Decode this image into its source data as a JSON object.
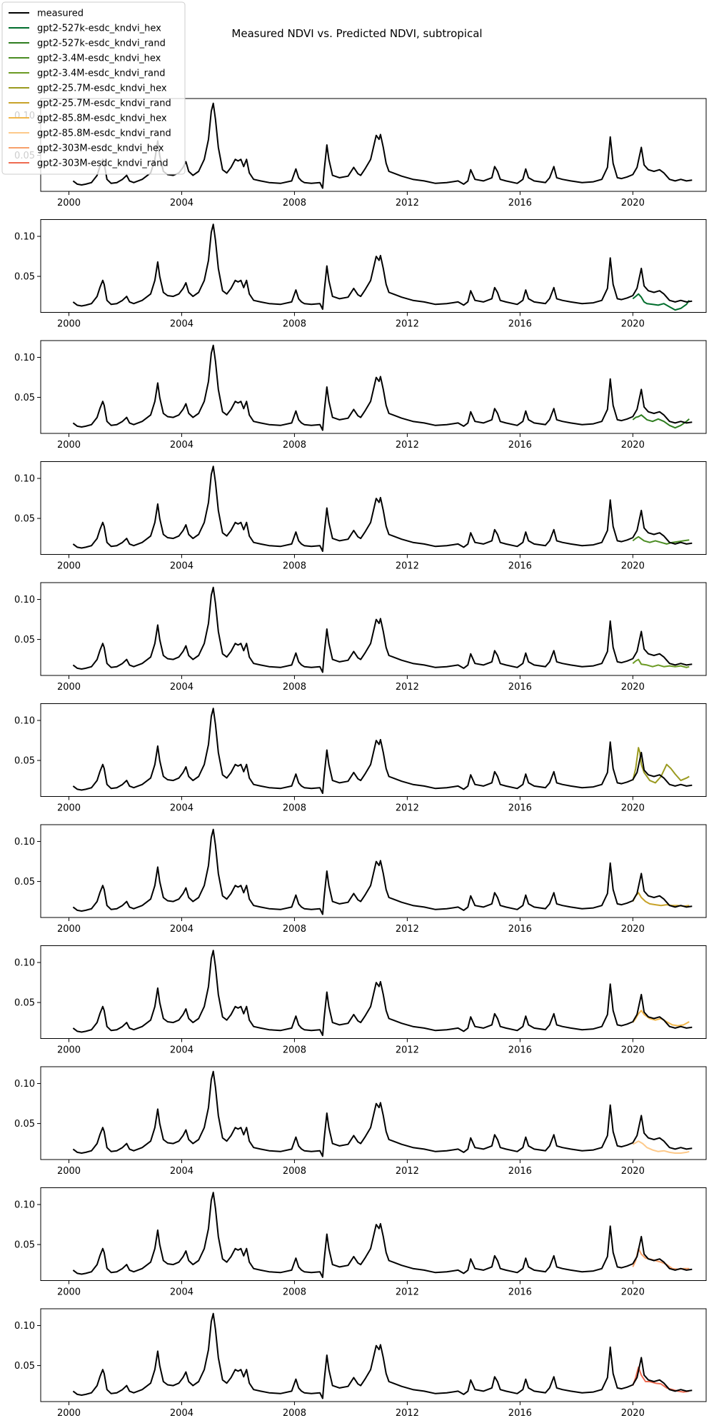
{
  "figure": {
    "title": "Measured NDVI vs. Predicted NDVI, subtropical"
  },
  "legend": {
    "placement": "top-left",
    "entries": [
      {
        "name": "measured",
        "color": "#000000"
      },
      {
        "name": "gpt2-527k-esdc_kndvi_hex",
        "color": "#006d2c"
      },
      {
        "name": "gpt2-527k-esdc_kndvi_rand",
        "color": "#2e7d1f"
      },
      {
        "name": "gpt2-3.4M-esdc_kndvi_hex",
        "color": "#4a8c22"
      },
      {
        "name": "gpt2-3.4M-esdc_kndvi_rand",
        "color": "#6b9a23"
      },
      {
        "name": "gpt2-25.7M-esdc_kndvi_hex",
        "color": "#9a9a1f"
      },
      {
        "name": "gpt2-25.7M-esdc_kndvi_rand",
        "color": "#c8a32a"
      },
      {
        "name": "gpt2-85.8M-esdc_kndvi_hex",
        "color": "#f0b64a"
      },
      {
        "name": "gpt2-85.8M-esdc_kndvi_rand",
        "color": "#fdc98a"
      },
      {
        "name": "gpt2-303M-esdc_kndvi_hex",
        "color": "#f7a06a"
      },
      {
        "name": "gpt2-303M-esdc_kndvi_rand",
        "color": "#ee6a50"
      }
    ]
  },
  "chart_data": {
    "type": "line",
    "xlabel": "",
    "ylabel": "",
    "xlim": [
      1999.0,
      2022.6
    ],
    "ylim": [
      0.005,
      0.121
    ],
    "grid": false,
    "x_ticks": [
      2000,
      2004,
      2008,
      2012,
      2016,
      2020
    ],
    "x_tick_labels": [
      "2000",
      "2004",
      "2008",
      "2012",
      "2016",
      "2020"
    ],
    "y_ticks": [
      0.05,
      0.1
    ],
    "y_tick_labels": [
      "0.05",
      "0.10"
    ],
    "measured": {
      "name": "measured",
      "color": "#000000",
      "x": [
        2000.15,
        2000.3,
        2000.45,
        2000.6,
        2000.8,
        2001.0,
        2001.1,
        2001.2,
        2001.25,
        2001.35,
        2001.5,
        2001.7,
        2001.9,
        2002.05,
        2002.15,
        2002.3,
        2002.6,
        2002.9,
        2003.05,
        2003.15,
        2003.22,
        2003.35,
        2003.5,
        2003.7,
        2003.9,
        2004.05,
        2004.15,
        2004.25,
        2004.4,
        2004.6,
        2004.8,
        2004.95,
        2005.05,
        2005.12,
        2005.2,
        2005.3,
        2005.45,
        2005.6,
        2005.75,
        2005.9,
        2006.0,
        2006.1,
        2006.2,
        2006.3,
        2006.4,
        2006.55,
        2006.8,
        2007.1,
        2007.5,
        2007.9,
        2008.05,
        2008.15,
        2008.25,
        2008.35,
        2008.6,
        2008.9,
        2009.0,
        2009.05,
        2009.15,
        2009.22,
        2009.35,
        2009.6,
        2009.9,
        2010.1,
        2010.25,
        2010.35,
        2010.5,
        2010.7,
        2010.9,
        2011.0,
        2011.05,
        2011.15,
        2011.25,
        2011.35,
        2011.5,
        2011.8,
        2012.2,
        2012.6,
        2013.0,
        2013.4,
        2013.8,
        2014.0,
        2014.15,
        2014.25,
        2014.4,
        2014.7,
        2015.0,
        2015.1,
        2015.2,
        2015.3,
        2015.5,
        2015.9,
        2016.1,
        2016.2,
        2016.3,
        2016.5,
        2016.9,
        2017.05,
        2017.2,
        2017.3,
        2017.5,
        2017.8,
        2018.2,
        2018.6,
        2018.9,
        2019.1,
        2019.2,
        2019.3,
        2019.45,
        2019.6,
        2019.8,
        2020.0,
        2020.15,
        2020.3,
        2020.4,
        2020.55,
        2020.75,
        2020.95,
        2021.1,
        2021.3,
        2021.5,
        2021.7,
        2021.9,
        2022.1
      ],
      "y": [
        0.018,
        0.014,
        0.013,
        0.014,
        0.016,
        0.025,
        0.036,
        0.045,
        0.04,
        0.02,
        0.015,
        0.016,
        0.02,
        0.025,
        0.018,
        0.016,
        0.02,
        0.028,
        0.045,
        0.068,
        0.05,
        0.03,
        0.026,
        0.025,
        0.028,
        0.035,
        0.042,
        0.03,
        0.025,
        0.03,
        0.045,
        0.07,
        0.105,
        0.115,
        0.095,
        0.06,
        0.032,
        0.028,
        0.035,
        0.045,
        0.043,
        0.045,
        0.036,
        0.045,
        0.028,
        0.02,
        0.018,
        0.016,
        0.015,
        0.018,
        0.033,
        0.022,
        0.018,
        0.016,
        0.015,
        0.016,
        0.009,
        0.03,
        0.063,
        0.045,
        0.025,
        0.022,
        0.024,
        0.035,
        0.027,
        0.025,
        0.033,
        0.045,
        0.075,
        0.07,
        0.076,
        0.06,
        0.04,
        0.03,
        0.028,
        0.024,
        0.02,
        0.018,
        0.015,
        0.016,
        0.018,
        0.014,
        0.018,
        0.032,
        0.02,
        0.018,
        0.022,
        0.036,
        0.03,
        0.02,
        0.018,
        0.015,
        0.02,
        0.033,
        0.022,
        0.018,
        0.016,
        0.022,
        0.036,
        0.022,
        0.02,
        0.018,
        0.016,
        0.017,
        0.02,
        0.035,
        0.073,
        0.04,
        0.022,
        0.021,
        0.023,
        0.026,
        0.035,
        0.06,
        0.038,
        0.032,
        0.03,
        0.032,
        0.028,
        0.02,
        0.018,
        0.02,
        0.018,
        0.019
      ]
    },
    "predictions": [
      {
        "name": "gpt2-527k-esdc_kndvi_hex",
        "color": "#006d2c",
        "x": [
          2020.0,
          2020.1,
          2020.2,
          2020.3,
          2020.4,
          2020.5,
          2020.7,
          2020.9,
          2021.1,
          2021.3,
          2021.5,
          2021.7,
          2021.9,
          2022.0
        ],
        "y": [
          0.022,
          0.025,
          0.028,
          0.024,
          0.018,
          0.016,
          0.015,
          0.014,
          0.016,
          0.012,
          0.008,
          0.01,
          0.015,
          0.02
        ]
      },
      {
        "name": "gpt2-527k-esdc_kndvi_rand",
        "color": "#2e7d1f",
        "x": [
          2020.0,
          2020.1,
          2020.2,
          2020.3,
          2020.5,
          2020.7,
          2020.9,
          2021.1,
          2021.3,
          2021.5,
          2021.7,
          2021.9,
          2022.0
        ],
        "y": [
          0.022,
          0.025,
          0.026,
          0.028,
          0.022,
          0.02,
          0.023,
          0.02,
          0.015,
          0.012,
          0.015,
          0.02,
          0.023
        ]
      },
      {
        "name": "gpt2-3.4M-esdc_kndvi_hex",
        "color": "#4a8c22",
        "x": [
          2020.0,
          2020.1,
          2020.2,
          2020.4,
          2020.6,
          2020.8,
          2021.0,
          2021.2,
          2021.4,
          2021.6,
          2021.8,
          2022.0
        ],
        "y": [
          0.022,
          0.025,
          0.027,
          0.022,
          0.02,
          0.022,
          0.02,
          0.018,
          0.02,
          0.021,
          0.022,
          0.023
        ]
      },
      {
        "name": "gpt2-3.4M-esdc_kndvi_rand",
        "color": "#6b9a23",
        "x": [
          2020.0,
          2020.1,
          2020.2,
          2020.3,
          2020.5,
          2020.7,
          2020.9,
          2021.1,
          2021.3,
          2021.5,
          2021.7,
          2021.9,
          2022.0
        ],
        "y": [
          0.02,
          0.023,
          0.025,
          0.019,
          0.018,
          0.016,
          0.018,
          0.016,
          0.017,
          0.016,
          0.017,
          0.015,
          0.016
        ]
      },
      {
        "name": "gpt2-25.7M-esdc_kndvi_hex",
        "color": "#9a9a1f",
        "x": [
          2020.0,
          2020.1,
          2020.2,
          2020.25,
          2020.3,
          2020.4,
          2020.5,
          2020.6,
          2020.8,
          2021.0,
          2021.2,
          2021.35,
          2021.5,
          2021.7,
          2021.9,
          2022.0
        ],
        "y": [
          0.025,
          0.04,
          0.066,
          0.06,
          0.045,
          0.035,
          0.03,
          0.025,
          0.022,
          0.03,
          0.045,
          0.04,
          0.033,
          0.025,
          0.028,
          0.03
        ]
      },
      {
        "name": "gpt2-25.7M-esdc_kndvi_rand",
        "color": "#c8a32a",
        "x": [
          2020.0,
          2020.1,
          2020.2,
          2020.3,
          2020.45,
          2020.6,
          2020.8,
          2021.0,
          2021.2,
          2021.4,
          2021.6,
          2021.8,
          2022.0
        ],
        "y": [
          0.025,
          0.032,
          0.036,
          0.03,
          0.025,
          0.022,
          0.021,
          0.02,
          0.021,
          0.02,
          0.02,
          0.019,
          0.02
        ]
      },
      {
        "name": "gpt2-85.8M-esdc_kndvi_hex",
        "color": "#f0b64a",
        "x": [
          2020.0,
          2020.1,
          2020.2,
          2020.3,
          2020.4,
          2020.6,
          2020.8,
          2021.0,
          2021.2,
          2021.4,
          2021.6,
          2021.8,
          2022.0
        ],
        "y": [
          0.025,
          0.03,
          0.036,
          0.04,
          0.035,
          0.03,
          0.028,
          0.03,
          0.026,
          0.022,
          0.021,
          0.022,
          0.026
        ]
      },
      {
        "name": "gpt2-85.8M-esdc_kndvi_rand",
        "color": "#fdc98a",
        "x": [
          2020.0,
          2020.1,
          2020.2,
          2020.35,
          2020.5,
          2020.7,
          2020.9,
          2021.1,
          2021.3,
          2021.5,
          2021.7,
          2021.9,
          2022.0
        ],
        "y": [
          0.024,
          0.026,
          0.028,
          0.025,
          0.02,
          0.017,
          0.015,
          0.016,
          0.014,
          0.013,
          0.013,
          0.014,
          0.015
        ]
      },
      {
        "name": "gpt2-303M-esdc_kndvi_hex",
        "color": "#f7a06a",
        "x": [
          2020.0,
          2020.1,
          2020.2,
          2020.3,
          2020.45,
          2020.6,
          2020.8,
          2021.0,
          2021.2,
          2021.4,
          2021.6,
          2021.8,
          2022.0
        ],
        "y": [
          0.022,
          0.03,
          0.045,
          0.038,
          0.033,
          0.032,
          0.03,
          0.028,
          0.025,
          0.02,
          0.019,
          0.02,
          0.02
        ]
      },
      {
        "name": "gpt2-303M-esdc_kndvi_rand",
        "color": "#ee6a50",
        "x": [
          2020.0,
          2020.1,
          2020.2,
          2020.3,
          2020.45,
          2020.6,
          2020.8,
          2021.0,
          2021.2,
          2021.4,
          2021.6,
          2021.8,
          2022.0
        ],
        "y": [
          0.025,
          0.035,
          0.048,
          0.038,
          0.03,
          0.03,
          0.028,
          0.027,
          0.022,
          0.02,
          0.018,
          0.017,
          0.018
        ]
      }
    ]
  }
}
